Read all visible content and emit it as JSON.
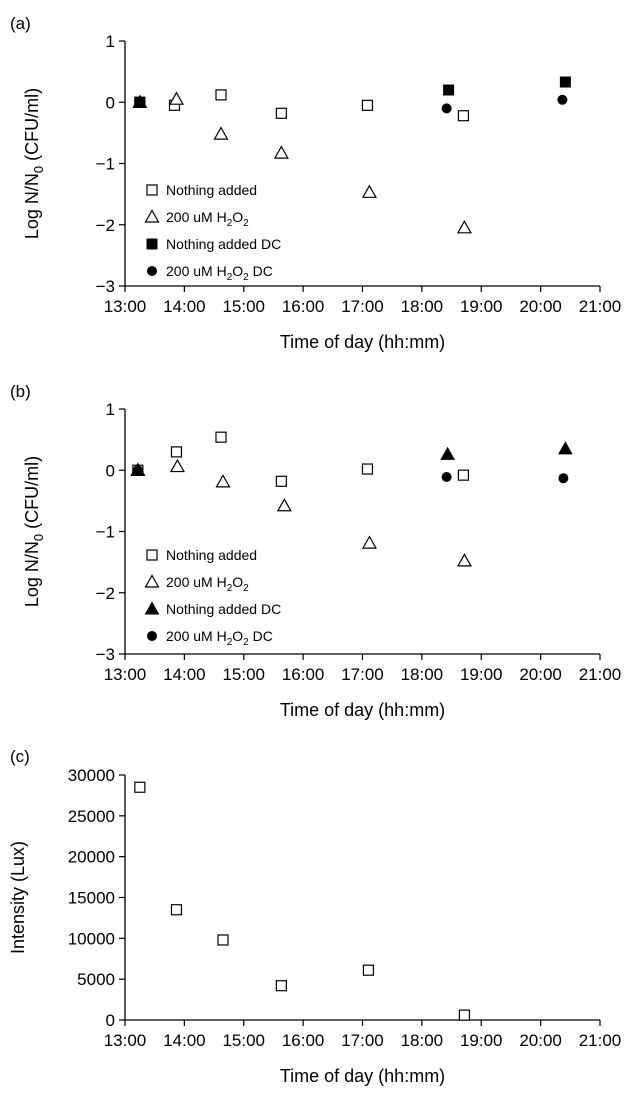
{
  "chart_data": [
    {
      "panel_label": "(a)",
      "type": "scatter",
      "xlabel": "Time of day (hh:mm)",
      "ylabel": "Log N/N0 (CFU/ml)",
      "ylabel_main": "Log N/N",
      "ylabel_sub": "0",
      "ylabel_rest": " (CFU/ml)",
      "xlim": [
        "13:00",
        "21:00"
      ],
      "ylim": [
        -3,
        1
      ],
      "xticks": [
        "13:00",
        "14:00",
        "15:00",
        "16:00",
        "17:00",
        "18:00",
        "19:00",
        "20:00",
        "21:00"
      ],
      "yticks": [
        "−3",
        "−2",
        "−1",
        "0",
        "1"
      ],
      "legend_position": "lower-left",
      "grid": false,
      "series": [
        {
          "name": "Nothing added",
          "name_parts": [
            "Nothing added"
          ],
          "marker": "open-square",
          "points": [
            {
              "x": "13:15",
              "y": 0.0
            },
            {
              "x": "13:50",
              "y": -0.05
            },
            {
              "x": "14:37",
              "y": 0.12
            },
            {
              "x": "15:38",
              "y": -0.18
            },
            {
              "x": "17:05",
              "y": -0.05
            },
            {
              "x": "18:42",
              "y": -0.22
            }
          ]
        },
        {
          "name": "200 uM H2O2",
          "name_parts": [
            "200 uM H",
            "2",
            "O",
            "2"
          ],
          "marker": "open-triangle",
          "points": [
            {
              "x": "13:15",
              "y": 0.0
            },
            {
              "x": "13:52",
              "y": 0.05
            },
            {
              "x": "14:37",
              "y": -0.52
            },
            {
              "x": "15:38",
              "y": -0.83
            },
            {
              "x": "17:07",
              "y": -1.47
            },
            {
              "x": "18:43",
              "y": -2.05
            }
          ]
        },
        {
          "name": "Nothing added DC",
          "name_parts": [
            "Nothing added DC"
          ],
          "marker": "filled-square",
          "points": [
            {
              "x": "13:15",
              "y": 0.0
            },
            {
              "x": "18:27",
              "y": 0.2
            },
            {
              "x": "20:25",
              "y": 0.33
            }
          ]
        },
        {
          "name": "200 uM H2O2 DC",
          "name_parts": [
            "200 uM H",
            "2",
            "O",
            "2",
            " DC"
          ],
          "marker": "filled-circle",
          "points": [
            {
              "x": "13:15",
              "y": 0.0
            },
            {
              "x": "18:25",
              "y": -0.1
            },
            {
              "x": "20:22",
              "y": 0.04
            }
          ]
        }
      ]
    },
    {
      "panel_label": "(b)",
      "type": "scatter",
      "xlabel": "Time of day (hh:mm)",
      "ylabel": "Log N/N0 (CFU/ml)",
      "ylabel_main": "Log N/N",
      "ylabel_sub": "0",
      "ylabel_rest": " (CFU/ml)",
      "xlim": [
        "13:00",
        "21:00"
      ],
      "ylim": [
        -3,
        1
      ],
      "xticks": [
        "13:00",
        "14:00",
        "15:00",
        "16:00",
        "17:00",
        "18:00",
        "19:00",
        "20:00",
        "21:00"
      ],
      "yticks": [
        "−3",
        "−2",
        "−1",
        "0",
        "1"
      ],
      "legend_position": "lower-left",
      "grid": false,
      "series": [
        {
          "name": "Nothing added",
          "name_parts": [
            "Nothing added"
          ],
          "marker": "open-square",
          "points": [
            {
              "x": "13:13",
              "y": 0.0
            },
            {
              "x": "13:52",
              "y": 0.3
            },
            {
              "x": "14:37",
              "y": 0.54
            },
            {
              "x": "15:38",
              "y": -0.18
            },
            {
              "x": "17:05",
              "y": 0.02
            },
            {
              "x": "18:42",
              "y": -0.08
            }
          ]
        },
        {
          "name": "200 uM H2O2",
          "name_parts": [
            "200 uM H",
            "2",
            "O",
            "2"
          ],
          "marker": "open-triangle",
          "points": [
            {
              "x": "13:13",
              "y": 0.0
            },
            {
              "x": "13:53",
              "y": 0.06
            },
            {
              "x": "14:39",
              "y": -0.19
            },
            {
              "x": "15:41",
              "y": -0.58
            },
            {
              "x": "17:07",
              "y": -1.19
            },
            {
              "x": "18:43",
              "y": -1.48
            }
          ]
        },
        {
          "name": "Nothing added DC",
          "name_parts": [
            "Nothing added DC"
          ],
          "marker": "filled-triangle",
          "points": [
            {
              "x": "13:13",
              "y": 0.0
            },
            {
              "x": "18:26",
              "y": 0.26
            },
            {
              "x": "20:25",
              "y": 0.35
            }
          ]
        },
        {
          "name": "200 uM H2O2 DC",
          "name_parts": [
            "200 uM H",
            "2",
            "O",
            "2",
            " DC"
          ],
          "marker": "filled-circle",
          "points": [
            {
              "x": "13:13",
              "y": 0.0
            },
            {
              "x": "18:25",
              "y": -0.11
            },
            {
              "x": "20:23",
              "y": -0.13
            }
          ]
        }
      ]
    },
    {
      "panel_label": "(c)",
      "type": "scatter",
      "xlabel": "Time of day (hh:mm)",
      "ylabel": "Intensity (Lux)",
      "xlim": [
        "13:00",
        "21:00"
      ],
      "ylim": [
        0,
        30000
      ],
      "xticks": [
        "13:00",
        "14:00",
        "15:00",
        "16:00",
        "17:00",
        "18:00",
        "19:00",
        "20:00",
        "21:00"
      ],
      "yticks": [
        "0",
        "5000",
        "10000",
        "15000",
        "20000",
        "25000",
        "30000"
      ],
      "grid": false,
      "series": [
        {
          "marker": "open-square",
          "points": [
            {
              "x": "13:15",
              "y": 28500
            },
            {
              "x": "13:52",
              "y": 13500
            },
            {
              "x": "14:39",
              "y": 9800
            },
            {
              "x": "15:38",
              "y": 4200
            },
            {
              "x": "17:06",
              "y": 6100
            },
            {
              "x": "18:43",
              "y": 600
            }
          ]
        }
      ]
    }
  ]
}
